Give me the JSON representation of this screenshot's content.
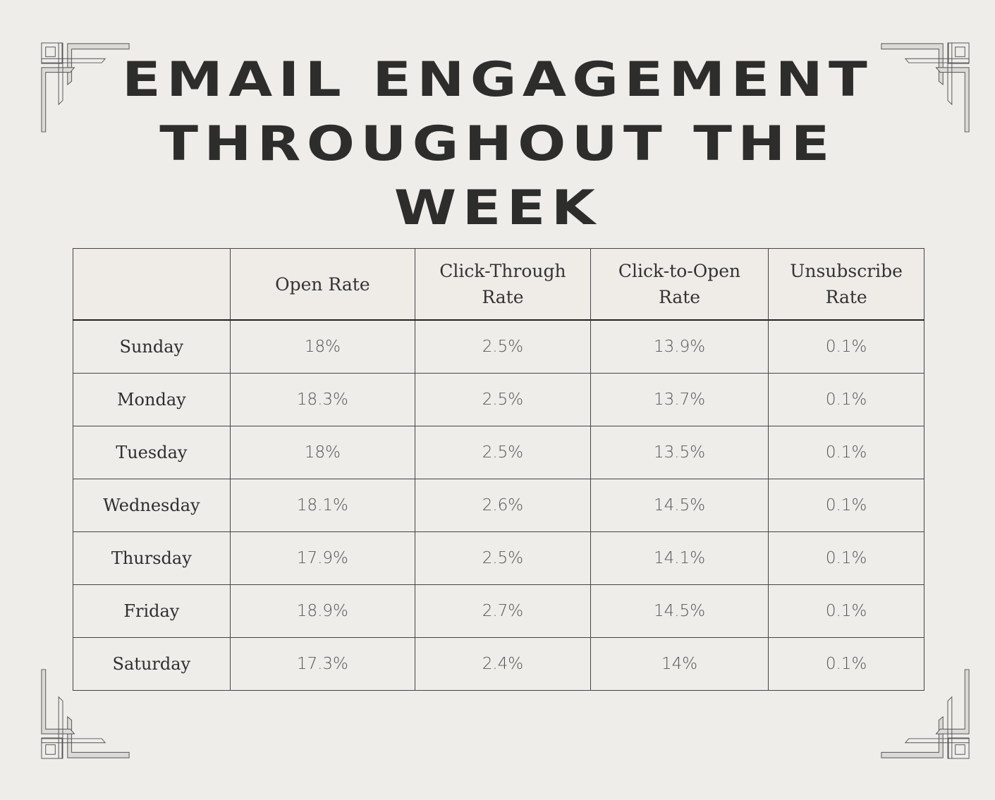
{
  "title": [
    "EMAIL ENGAGEMENT",
    "THROUGHOUT THE",
    "WEEK"
  ],
  "table": {
    "headers": [
      "",
      "Open Rate",
      "Click-Through Rate",
      "Click-to-Open Rate",
      "Unsubscribe Rate"
    ],
    "rows": [
      [
        "Sunday",
        "18%",
        "2.5%",
        "13.9%",
        "0.1%"
      ],
      [
        "Monday",
        "18.3%",
        "2.5%",
        "13.7%",
        "0.1%"
      ],
      [
        "Tuesday",
        "18%",
        "2.5%",
        "13.5%",
        "0.1%"
      ],
      [
        "Wednesday",
        "18.1%",
        "2.6%",
        "14.5%",
        "0.1%"
      ],
      [
        "Thursday",
        "17.9%",
        "2.5%",
        "14.1%",
        "0.1%"
      ],
      [
        "Friday",
        "18.9%",
        "2.7%",
        "14.5%",
        "0.1%"
      ],
      [
        "Saturday",
        "17.3%",
        "2.4%",
        "14%",
        "0.1%"
      ]
    ]
  },
  "colors": {
    "background": "#efedea",
    "text": "#2d2d2b",
    "ornament": "#d8d6d2"
  }
}
